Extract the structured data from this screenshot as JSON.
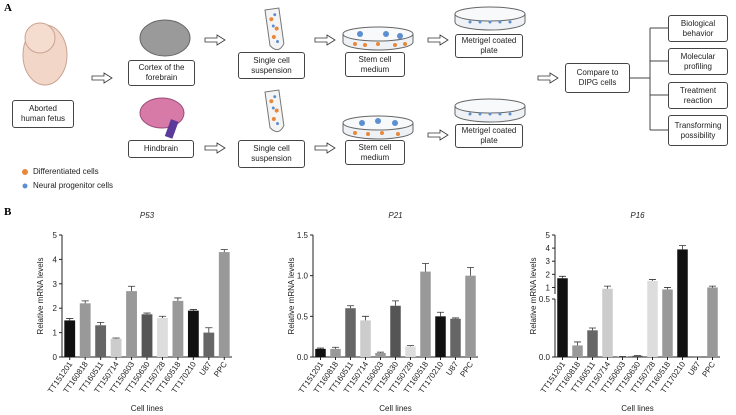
{
  "panel_labels": [
    "A",
    "B"
  ],
  "diagram": {
    "source": "Aborted human fetus",
    "tissues": [
      "Cortex of the forebrain",
      "Hindbrain"
    ],
    "steps": [
      "Single cell suspension",
      "Stem cell medium",
      "Metrigel coated plate"
    ],
    "compare": "Compare to DIPG cells",
    "outcomes": [
      "Biological behavior",
      "Molecular profiling",
      "Treatment reaction",
      "Transforming possibility"
    ],
    "legend": [
      "Differentiated cells",
      "Neural progenitor cells"
    ]
  },
  "chart_data": [
    {
      "type": "bar",
      "title": "P53",
      "x_label": "Cell lines",
      "y_label": "Relative mRNA levels",
      "categories": [
        "TT151201",
        "TT160818",
        "TT160511",
        "TT150714",
        "TT150603",
        "TT150630",
        "TT150728",
        "TT160518",
        "TT170210",
        "U87",
        "PPC"
      ],
      "values": [
        1.5,
        2.2,
        1.3,
        0.75,
        2.7,
        1.75,
        1.6,
        2.3,
        1.9,
        1.0,
        4.3
      ],
      "errors": [
        0.08,
        0.1,
        0.12,
        0.03,
        0.2,
        0.05,
        0.07,
        0.12,
        0.05,
        0.2,
        0.1
      ],
      "colors": [
        "#111111",
        "#999999",
        "#666666",
        "#cccccc",
        "#999999",
        "#555555",
        "#dddddd",
        "#999999",
        "#111111",
        "#666666",
        "#999999"
      ],
      "ylim": [
        0,
        5
      ],
      "yticks": [
        0,
        1,
        2,
        3,
        4,
        5
      ]
    },
    {
      "type": "bar",
      "title": "P21",
      "x_label": "Cell lines",
      "y_label": "Relative mRNA levels",
      "categories": [
        "TT151201",
        "TT160818",
        "TT160511",
        "TT150714",
        "TT150603",
        "TT150630",
        "TT150728",
        "TT160518",
        "TT170210",
        "U87",
        "PPC"
      ],
      "values": [
        0.1,
        0.1,
        0.6,
        0.45,
        0.05,
        0.63,
        0.13,
        1.05,
        0.5,
        0.47,
        1.0
      ],
      "errors": [
        0.01,
        0.02,
        0.03,
        0.05,
        0.01,
        0.06,
        0.01,
        0.1,
        0.05,
        0.01,
        0.1
      ],
      "colors": [
        "#111111",
        "#999999",
        "#666666",
        "#cccccc",
        "#999999",
        "#555555",
        "#dddddd",
        "#999999",
        "#111111",
        "#666666",
        "#999999"
      ],
      "ylim": [
        0,
        1.5
      ],
      "yticks": [
        {
          "value": 0,
          "label": "0.0"
        },
        0.5,
        {
          "value": 1,
          "label": "1.0"
        },
        1.5
      ]
    },
    {
      "type": "bar",
      "title": "P16",
      "x_label": "Cell lines",
      "y_label": "Relative mRNA levels",
      "categories": [
        "TT151201",
        "TT160818",
        "TT160511",
        "TT150714",
        "TT150603",
        "TT150630",
        "TT150728",
        "TT160518",
        "TT170210",
        "U87",
        "PPC"
      ],
      "values": [
        1.7,
        0.1,
        0.23,
        0.9,
        0.005,
        0.01,
        1.5,
        0.85,
        3.9,
        0,
        1.0
      ],
      "errors": [
        0.15,
        0.03,
        0.02,
        0.2,
        0,
        0.003,
        0.1,
        0.15,
        0.3,
        0,
        0.1
      ],
      "colors": [
        "#111111",
        "#999999",
        "#666666",
        "#cccccc",
        "#999999",
        "#555555",
        "#dddddd",
        "#999999",
        "#111111",
        "#666666",
        "#999999"
      ],
      "axis_break": {
        "lower_ylim": [
          0,
          0.5
        ],
        "lower_yticks": [
          {
            "value": 0,
            "label": "0.0"
          },
          0.5
        ],
        "upper_ylim": [
          0.5,
          5
        ],
        "upper_yticks": [
          1,
          2,
          3,
          4,
          5
        ]
      }
    }
  ]
}
